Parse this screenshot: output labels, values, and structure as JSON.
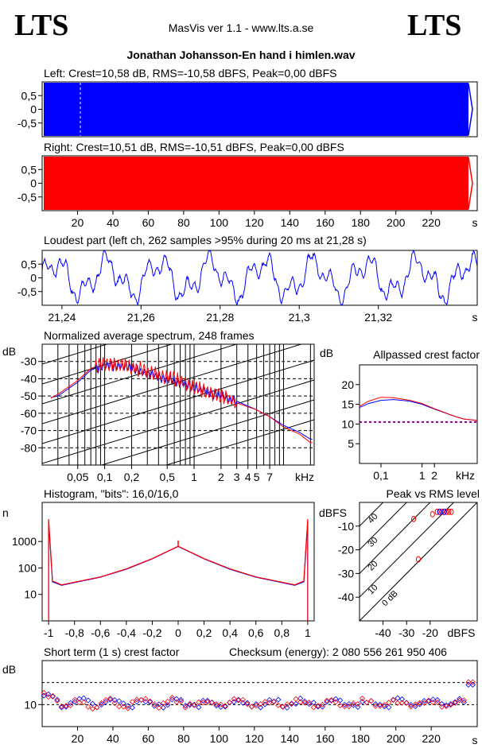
{
  "header": {
    "logo_left": "LTS",
    "logo_right": "LTS",
    "app_title": "MasVis ver 1.1 - www.lts.a.se",
    "file_name": "Jonathan Johansson-En hand i himlen.wav"
  },
  "colors": {
    "left": "#0000ff",
    "right": "#ff0000",
    "grid": "#000000"
  },
  "chart_data": [
    {
      "id": "left_waveform",
      "type": "area",
      "title": "Left: Crest=10,58 dB, RMS=-10,58 dBFS, Peak=0,00 dBFS",
      "ylim": [
        -1,
        1
      ],
      "yticks": [
        "0,5",
        "0",
        "-0,5"
      ],
      "xlim": [
        0,
        246
      ],
      "series": [
        {
          "color": "#0000ff",
          "amplitude": 1.0
        }
      ]
    },
    {
      "id": "right_waveform",
      "type": "area",
      "title": "Right: Crest=10,51 dB, RMS=-10,51 dBFS, Peak=0,00 dBFS",
      "ylim": [
        -1,
        1
      ],
      "yticks": [
        "0,5",
        "0",
        "-0,5"
      ],
      "xlim": [
        0,
        246
      ],
      "xticks": [
        "20",
        "40",
        "60",
        "80",
        "100",
        "120",
        "140",
        "160",
        "180",
        "200",
        "220"
      ],
      "xunit": "s",
      "series": [
        {
          "color": "#ff0000",
          "amplitude": 1.0
        }
      ]
    },
    {
      "id": "loudest_part",
      "type": "line",
      "title": "Loudest part (left  ch, 262 samples >95% during 20 ms at 21,28 s)",
      "ylim": [
        -1,
        1
      ],
      "yticks": [
        "0,5",
        "0",
        "-0,5"
      ],
      "xlim": [
        21.235,
        21.345
      ],
      "xticks": [
        "21,24",
        "21,26",
        "21,28",
        "21,3",
        "21,32"
      ],
      "xunit": "s",
      "series": [
        {
          "color": "#0000ff"
        }
      ]
    },
    {
      "id": "spectrum",
      "type": "line",
      "title": "Normalized average spectrum, 248 frames",
      "ylabel": "dB",
      "ylim": [
        -90,
        -20
      ],
      "yticks": [
        "-30",
        "-40",
        "-50",
        "-60",
        "-70",
        "-80"
      ],
      "xscale": "log",
      "xlim": [
        0.02,
        22
      ],
      "xticks": [
        "0,05",
        "0,1",
        "0,2",
        "0,5",
        "1",
        "2",
        "3",
        "4",
        "5",
        "7"
      ],
      "xunit": "kHz",
      "series": [
        {
          "color": "#0000ff",
          "x": [
            0.02,
            0.03,
            0.05,
            0.07,
            0.1,
            0.15,
            0.2,
            0.3,
            0.5,
            0.7,
            1,
            2,
            3,
            5,
            7,
            10,
            15,
            20
          ],
          "y": [
            -52,
            -50,
            -42,
            -35,
            -32,
            -33,
            -34,
            -37,
            -40,
            -42,
            -45,
            -50,
            -53,
            -58,
            -62,
            -67,
            -71,
            -75
          ]
        },
        {
          "color": "#ff0000",
          "x": [
            0.02,
            0.03,
            0.05,
            0.07,
            0.1,
            0.15,
            0.2,
            0.3,
            0.5,
            0.7,
            1,
            2,
            3,
            5,
            7,
            10,
            15,
            20
          ],
          "y": [
            -54,
            -49,
            -41,
            -34,
            -31,
            -32,
            -33,
            -36,
            -39,
            -41,
            -45,
            -50,
            -54,
            -58,
            -62,
            -68,
            -72,
            -77
          ]
        }
      ]
    },
    {
      "id": "allpass_crest",
      "type": "line",
      "title": "Allpassed crest factor",
      "ylabel": "dB",
      "ylim": [
        0,
        25
      ],
      "yticks": [
        "20",
        "15",
        "10",
        "5"
      ],
      "xscale": "log",
      "xlim": [
        0.03,
        22
      ],
      "xticks": [
        "0,1",
        "1",
        "2"
      ],
      "xunit": "kHz",
      "reference_db": 10.5,
      "series": [
        {
          "color": "#0000ff",
          "x": [
            0.03,
            0.05,
            0.1,
            0.2,
            0.5,
            1,
            2,
            5,
            10,
            22
          ],
          "y": [
            14.2,
            15.2,
            16.0,
            16.2,
            15.8,
            15.0,
            13.8,
            12.3,
            11.3,
            10.9
          ]
        },
        {
          "color": "#ff0000",
          "x": [
            0.03,
            0.05,
            0.1,
            0.2,
            0.5,
            1,
            2,
            5,
            10,
            22
          ],
          "y": [
            14.5,
            15.8,
            16.8,
            16.7,
            16.0,
            15.2,
            13.9,
            12.3,
            11.3,
            10.9
          ]
        }
      ]
    },
    {
      "id": "histogram",
      "type": "line",
      "title": "Histogram, \"bits\": 16,0/16,0",
      "ylabel": "n",
      "yscale": "log",
      "ylim": [
        1,
        30000
      ],
      "yticks": [
        "1000",
        "100",
        "10"
      ],
      "xlim": [
        -1.05,
        1.05
      ],
      "xticks": [
        "-1",
        "-0,8",
        "-0,6",
        "-0,4",
        "-0,2",
        "0",
        "0,2",
        "0,4",
        "0,6",
        "0,8",
        "1"
      ],
      "series": [
        {
          "color": "#0000ff",
          "x": [
            -1,
            -0.97,
            -0.9,
            -0.8,
            -0.6,
            -0.4,
            -0.2,
            0,
            0.2,
            0.4,
            0.6,
            0.8,
            0.9,
            0.97,
            1
          ],
          "y": [
            6000,
            30,
            22,
            28,
            45,
            90,
            220,
            650,
            220,
            90,
            45,
            28,
            22,
            30,
            6000
          ]
        },
        {
          "color": "#ff0000",
          "x": [
            -1,
            -0.97,
            -0.9,
            -0.8,
            -0.6,
            -0.4,
            -0.2,
            0,
            0.2,
            0.4,
            0.6,
            0.8,
            0.9,
            0.97,
            1
          ],
          "y": [
            7000,
            32,
            23,
            29,
            46,
            92,
            225,
            660,
            225,
            92,
            46,
            29,
            23,
            32,
            7000
          ]
        }
      ]
    },
    {
      "id": "peak_vs_rms",
      "type": "scatter",
      "title": "Peak vs RMS level",
      "ylabel": "dBFS",
      "xlabel": "dBFS",
      "ylim": [
        -50,
        0
      ],
      "yticks": [
        "-10",
        "-20",
        "-30",
        "-40"
      ],
      "xlim": [
        -50,
        0
      ],
      "xticks": [
        "-40",
        "-30",
        "-20"
      ],
      "diagonal_labels": [
        "40",
        "30",
        "20",
        "10",
        "0 dB"
      ],
      "series": [
        {
          "color": "#ff0000",
          "points": [
            [
              -25,
              -24
            ],
            [
              -27,
              -7
            ],
            [
              -19,
              -5
            ],
            [
              -17,
              -4
            ],
            [
              -16,
              -4
            ],
            [
              -15,
              -4
            ],
            [
              -14,
              -4
            ],
            [
              -13,
              -4
            ],
            [
              -12,
              -4
            ],
            [
              -11,
              -4
            ]
          ]
        },
        {
          "color": "#0000ff",
          "points": [
            [
              -16,
              -4
            ],
            [
              -14,
              -4
            ]
          ]
        }
      ]
    },
    {
      "id": "short_term_crest",
      "type": "scatter",
      "title": "Short term (1 s) crest factor",
      "ylabel": "dB",
      "ylim": [
        5,
        20
      ],
      "yticks": [
        "10"
      ],
      "xlim": [
        0,
        246
      ],
      "xticks": [
        "20",
        "40",
        "60",
        "80",
        "100",
        "120",
        "140",
        "160",
        "180",
        "200",
        "220"
      ],
      "xunit": "s",
      "reference_db": 15,
      "series": [
        {
          "color": "#0000ff"
        },
        {
          "color": "#ff0000"
        }
      ]
    }
  ],
  "checksum": "Checksum (energy):  2 080 556 261 950 406"
}
